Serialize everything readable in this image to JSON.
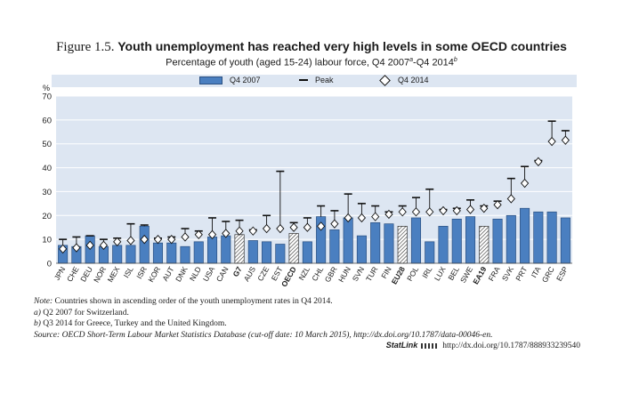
{
  "figure": {
    "number": "Figure 1.5.",
    "title": "Youth unemployment has reached very high levels in some OECD countries",
    "subtitle_main": "Percentage of youth (aged 15-24) labour force, Q4 2007",
    "subtitle_sup_a": "a",
    "subtitle_mid": "-Q4 2014",
    "subtitle_sup_b": "b"
  },
  "legend": {
    "bar": "Q4 2007",
    "peak": "Peak",
    "diamond": "Q4 2014"
  },
  "colors": {
    "bar": "#4a7fc0",
    "bar_stroke": "#2a4f80",
    "plot_bg": "#dde6f2",
    "grid": "#ffffff"
  },
  "chart_data": {
    "type": "bar",
    "title": "Youth unemployment has reached very high levels in some OECD countries",
    "ylabel": "%",
    "ylim": [
      0,
      70
    ],
    "yticks": [
      0,
      10,
      20,
      30,
      40,
      50,
      60,
      70
    ],
    "categories": [
      "JPN",
      "CHE",
      "DEU",
      "NOR",
      "MEX",
      "ISL",
      "ISR",
      "KOR",
      "AUT",
      "DNK",
      "NLD",
      "USA",
      "CAN",
      "G7",
      "AUS",
      "CZE",
      "EST",
      "OECD",
      "NZL",
      "CHL",
      "GBR",
      "HUN",
      "SVN",
      "TUR",
      "FIN",
      "EU28",
      "POL",
      "IRL",
      "LUX",
      "BEL",
      "SWE",
      "EA19",
      "FRA",
      "SVK",
      "PRT",
      "ITA",
      "GRC",
      "ESP"
    ],
    "aggregates": [
      "G7",
      "OECD",
      "EU28",
      "EA19"
    ],
    "series": [
      {
        "name": "Q4 2007",
        "values": [
          7.5,
          7,
          11.5,
          7,
          7.5,
          7.5,
          15.5,
          8.5,
          8.5,
          7,
          9,
          11,
          11.5,
          12,
          9.5,
          9,
          8,
          12.5,
          9,
          19.5,
          14,
          19,
          11.5,
          17,
          16.5,
          15.5,
          19,
          9,
          15.5,
          18.5,
          19.5,
          15.5,
          18.5,
          20,
          23,
          21.5,
          21.5,
          19
        ]
      },
      {
        "name": "Peak",
        "values": [
          10,
          11,
          11.5,
          10,
          10.5,
          16.5,
          16,
          10.5,
          11,
          14.5,
          13.5,
          19,
          17.5,
          18,
          14,
          20,
          38.5,
          17,
          19,
          24,
          22,
          29,
          25,
          24,
          21.5,
          24,
          27.5,
          31,
          22.5,
          23,
          26.5,
          24,
          26,
          35.5,
          40.5,
          43,
          59.5,
          55.5
        ]
      },
      {
        "name": "Q4 2014",
        "values": [
          6,
          6.5,
          7.5,
          7.5,
          9,
          9.5,
          10,
          10,
          10,
          11,
          12,
          12,
          12.5,
          13.5,
          13.5,
          14.5,
          14.5,
          15,
          15,
          15.5,
          16.5,
          19,
          19,
          19.5,
          20.5,
          21.5,
          21.5,
          21.5,
          22,
          22,
          22.5,
          23,
          24.5,
          27,
          33.5,
          42.5,
          51,
          51.5
        ]
      }
    ]
  },
  "notes": {
    "note_label": "Note:",
    "note_text": "Countries shown in ascending order of the youth unemployment rates in Q4 2014.",
    "a_label": "a)",
    "a_text": "Q2 2007 for Switzerland.",
    "b_label": "b)",
    "b_text": "Q3 2014 for Greece, Turkey and the United Kingdom.",
    "source_label": "Source:",
    "source_text": "OECD Short-Term Labour Market Statistics Database (cut-off date: 10 March 2015), http://dx.doi.org/10.1787/data-00046-en."
  },
  "statlink": {
    "label": "StatLink",
    "url": "http://dx.doi.org/10.1787/888933239540"
  }
}
